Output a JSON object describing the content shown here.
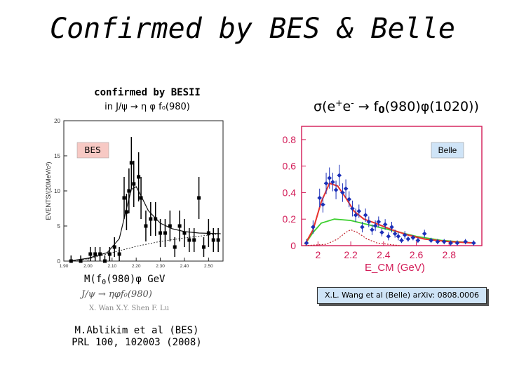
{
  "title": "Confirmed by BES & Belle",
  "bes": {
    "heading": "confirmed by BESII",
    "subheading": "in J/ψ → η φ f₀(980)",
    "badge": "BES",
    "mass_label": "M(f",
    "mass_label_sub": "0",
    "mass_label_rest": "(980)φ GeV",
    "formula_faint": "J/ψ → ηφf₀(980)",
    "authors_faint": "X. Wan  X.Y. Shen  F. Lu",
    "reference_line1": "M.Ablikim et al (BES)",
    "reference_line2": "PRL 100, 102003 (2008)"
  },
  "belle": {
    "heading_pre": "σ(e",
    "heading_sup1": "+",
    "heading_mid": "e",
    "heading_sup2": "-",
    "heading_arrow": " → f",
    "heading_sub": "0",
    "heading_post": "(980)φ(1020))",
    "badge": "Belle",
    "reference": "X.L. Wang et al (Belle) arXiv: 0808.0006"
  },
  "chart_data": [
    {
      "type": "scatter",
      "source": "BES",
      "ylabel": "EVENTS/(20MeV/c²)",
      "xlim": [
        1.9,
        2.56
      ],
      "ylim": [
        0,
        20
      ],
      "xticks": [
        "1.90",
        "2.00",
        "2.10",
        "2.20",
        "2.30",
        "2.40",
        "2.50"
      ],
      "yticks": [
        "0",
        "5",
        "10",
        "15",
        "20"
      ],
      "points": [
        {
          "x": 1.93,
          "y": 0,
          "e": 0.8
        },
        {
          "x": 1.97,
          "y": 0,
          "e": 0.8
        },
        {
          "x": 2.01,
          "y": 1,
          "e": 1.0
        },
        {
          "x": 2.03,
          "y": 1,
          "e": 1.0
        },
        {
          "x": 2.05,
          "y": 1,
          "e": 1.0
        },
        {
          "x": 2.07,
          "y": 0,
          "e": 0.8
        },
        {
          "x": 2.09,
          "y": 1,
          "e": 1.0
        },
        {
          "x": 2.11,
          "y": 2,
          "e": 1.4
        },
        {
          "x": 2.13,
          "y": 1,
          "e": 1.0
        },
        {
          "x": 2.15,
          "y": 9,
          "e": 3.0
        },
        {
          "x": 2.16,
          "y": 7,
          "e": 2.6
        },
        {
          "x": 2.17,
          "y": 10,
          "e": 3.2
        },
        {
          "x": 2.18,
          "y": 14,
          "e": 3.7
        },
        {
          "x": 2.19,
          "y": 11,
          "e": 3.3
        },
        {
          "x": 2.21,
          "y": 12,
          "e": 3.5
        },
        {
          "x": 2.22,
          "y": 9,
          "e": 3.0
        },
        {
          "x": 2.24,
          "y": 5,
          "e": 2.2
        },
        {
          "x": 2.26,
          "y": 6,
          "e": 2.4
        },
        {
          "x": 2.28,
          "y": 6,
          "e": 2.4
        },
        {
          "x": 2.3,
          "y": 4,
          "e": 2.0
        },
        {
          "x": 2.32,
          "y": 4,
          "e": 2.0
        },
        {
          "x": 2.34,
          "y": 5,
          "e": 2.2
        },
        {
          "x": 2.36,
          "y": 2,
          "e": 1.4
        },
        {
          "x": 2.38,
          "y": 5,
          "e": 2.2
        },
        {
          "x": 2.4,
          "y": 4,
          "e": 2.0
        },
        {
          "x": 2.42,
          "y": 3,
          "e": 1.7
        },
        {
          "x": 2.44,
          "y": 3,
          "e": 1.7
        },
        {
          "x": 2.46,
          "y": 9,
          "e": 3.0
        },
        {
          "x": 2.48,
          "y": 2,
          "e": 1.4
        },
        {
          "x": 2.5,
          "y": 4,
          "e": 2.0
        },
        {
          "x": 2.52,
          "y": 3,
          "e": 1.7
        },
        {
          "x": 2.54,
          "y": 3,
          "e": 1.7
        }
      ],
      "fit": [
        [
          1.92,
          0
        ],
        [
          2.0,
          0.4
        ],
        [
          2.08,
          1.2
        ],
        [
          2.13,
          3.2
        ],
        [
          2.16,
          7.5
        ],
        [
          2.18,
          10.2
        ],
        [
          2.2,
          10.6
        ],
        [
          2.22,
          9.3
        ],
        [
          2.25,
          7.2
        ],
        [
          2.3,
          5.4
        ],
        [
          2.35,
          4.6
        ],
        [
          2.4,
          4.2
        ],
        [
          2.46,
          4.0
        ],
        [
          2.55,
          3.9
        ]
      ],
      "background": [
        [
          1.92,
          0
        ],
        [
          2.0,
          0.3
        ],
        [
          2.1,
          1.2
        ],
        [
          2.2,
          2.1
        ],
        [
          2.3,
          2.8
        ],
        [
          2.4,
          3.3
        ],
        [
          2.5,
          3.7
        ],
        [
          2.55,
          3.9
        ]
      ]
    },
    {
      "type": "scatter",
      "source": "Belle",
      "xlabel": "E_CM (GeV)",
      "xlim": [
        1.9,
        3.0
      ],
      "ylim": [
        0,
        0.9
      ],
      "xticks": [
        "2",
        "2.2",
        "2.4",
        "2.6",
        "2.8"
      ],
      "yticks": [
        "0",
        "0.2",
        "0.4",
        "0.6",
        "0.8"
      ],
      "points": [
        {
          "x": 1.93,
          "y": 0.02,
          "e": 0.03
        },
        {
          "x": 1.97,
          "y": 0.14,
          "e": 0.05
        },
        {
          "x": 2.01,
          "y": 0.36,
          "e": 0.07
        },
        {
          "x": 2.03,
          "y": 0.31,
          "e": 0.06
        },
        {
          "x": 2.05,
          "y": 0.47,
          "e": 0.08
        },
        {
          "x": 2.07,
          "y": 0.51,
          "e": 0.08
        },
        {
          "x": 2.09,
          "y": 0.48,
          "e": 0.07
        },
        {
          "x": 2.11,
          "y": 0.42,
          "e": 0.07
        },
        {
          "x": 2.13,
          "y": 0.53,
          "e": 0.08
        },
        {
          "x": 2.15,
          "y": 0.4,
          "e": 0.07
        },
        {
          "x": 2.17,
          "y": 0.43,
          "e": 0.07
        },
        {
          "x": 2.19,
          "y": 0.35,
          "e": 0.06
        },
        {
          "x": 2.21,
          "y": 0.28,
          "e": 0.06
        },
        {
          "x": 2.23,
          "y": 0.23,
          "e": 0.05
        },
        {
          "x": 2.25,
          "y": 0.26,
          "e": 0.05
        },
        {
          "x": 2.27,
          "y": 0.14,
          "e": 0.04
        },
        {
          "x": 2.29,
          "y": 0.23,
          "e": 0.05
        },
        {
          "x": 2.31,
          "y": 0.18,
          "e": 0.04
        },
        {
          "x": 2.33,
          "y": 0.12,
          "e": 0.04
        },
        {
          "x": 2.35,
          "y": 0.15,
          "e": 0.04
        },
        {
          "x": 2.37,
          "y": 0.18,
          "e": 0.04
        },
        {
          "x": 2.39,
          "y": 0.1,
          "e": 0.03
        },
        {
          "x": 2.41,
          "y": 0.16,
          "e": 0.04
        },
        {
          "x": 2.43,
          "y": 0.07,
          "e": 0.03
        },
        {
          "x": 2.45,
          "y": 0.14,
          "e": 0.04
        },
        {
          "x": 2.47,
          "y": 0.09,
          "e": 0.03
        },
        {
          "x": 2.49,
          "y": 0.07,
          "e": 0.03
        },
        {
          "x": 2.51,
          "y": 0.04,
          "e": 0.02
        },
        {
          "x": 2.53,
          "y": 0.08,
          "e": 0.03
        },
        {
          "x": 2.55,
          "y": 0.05,
          "e": 0.02
        },
        {
          "x": 2.58,
          "y": 0.06,
          "e": 0.02
        },
        {
          "x": 2.61,
          "y": 0.04,
          "e": 0.02
        },
        {
          "x": 2.65,
          "y": 0.09,
          "e": 0.03
        },
        {
          "x": 2.69,
          "y": 0.04,
          "e": 0.02
        },
        {
          "x": 2.73,
          "y": 0.03,
          "e": 0.02
        },
        {
          "x": 2.77,
          "y": 0.03,
          "e": 0.02
        },
        {
          "x": 2.81,
          "y": 0.02,
          "e": 0.02
        },
        {
          "x": 2.85,
          "y": 0.02,
          "e": 0.02
        },
        {
          "x": 2.9,
          "y": 0.03,
          "e": 0.02
        },
        {
          "x": 2.95,
          "y": 0.02,
          "e": 0.02
        }
      ],
      "fit_total": [
        [
          1.92,
          0.01
        ],
        [
          1.97,
          0.12
        ],
        [
          2.02,
          0.33
        ],
        [
          2.07,
          0.47
        ],
        [
          2.12,
          0.45
        ],
        [
          2.17,
          0.36
        ],
        [
          2.22,
          0.26
        ],
        [
          2.28,
          0.2
        ],
        [
          2.35,
          0.17
        ],
        [
          2.45,
          0.12
        ],
        [
          2.55,
          0.08
        ],
        [
          2.65,
          0.05
        ],
        [
          2.8,
          0.03
        ],
        [
          2.95,
          0.02
        ]
      ],
      "fit_nonres": [
        [
          1.92,
          0.01
        ],
        [
          1.97,
          0.1
        ],
        [
          2.02,
          0.17
        ],
        [
          2.1,
          0.2
        ],
        [
          2.2,
          0.19
        ],
        [
          2.3,
          0.16
        ],
        [
          2.4,
          0.13
        ],
        [
          2.5,
          0.1
        ],
        [
          2.6,
          0.07
        ],
        [
          2.75,
          0.04
        ],
        [
          2.95,
          0.02
        ]
      ],
      "fit_res": [
        [
          1.92,
          0.0
        ],
        [
          2.05,
          0.01
        ],
        [
          2.12,
          0.05
        ],
        [
          2.17,
          0.1
        ],
        [
          2.2,
          0.12
        ],
        [
          2.24,
          0.1
        ],
        [
          2.3,
          0.05
        ],
        [
          2.36,
          0.02
        ],
        [
          2.5,
          0.0
        ]
      ]
    }
  ]
}
